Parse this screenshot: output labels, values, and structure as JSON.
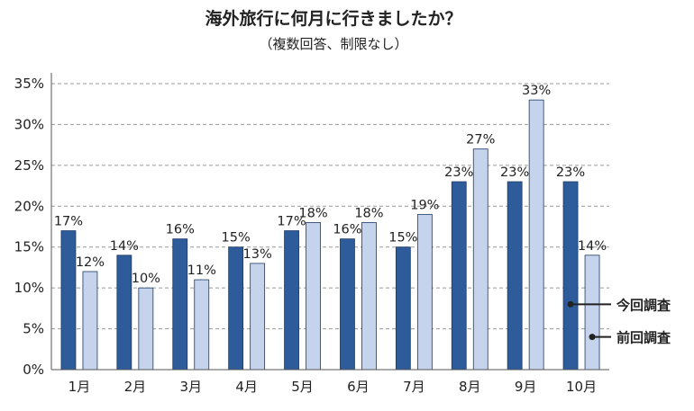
{
  "chart_data": {
    "type": "bar",
    "title": "海外旅行に何月に行きましたか？",
    "subtitle": "（複数回答、制限なし）",
    "categories": [
      "1月",
      "2月",
      "3月",
      "4月",
      "5月",
      "6月",
      "7月",
      "8月",
      "9月",
      "10月"
    ],
    "series": [
      {
        "name": "今回調査",
        "values": [
          17,
          14,
          16,
          15,
          17,
          16,
          15,
          23,
          23,
          23
        ],
        "labels": [
          "17%",
          "14%",
          "16%",
          "15%",
          "17%",
          "16%",
          "15%",
          "23%",
          "23%",
          "23%"
        ],
        "color": "#2e5b9a"
      },
      {
        "name": "前回調査",
        "values": [
          12,
          10,
          11,
          13,
          18,
          18,
          19,
          27,
          33,
          14
        ],
        "labels": [
          "12%",
          "10%",
          "11%",
          "13%",
          "18%",
          "18%",
          "19%",
          "27%",
          "33%",
          "14%"
        ],
        "color": "#c5d3ec"
      }
    ],
    "ylim": [
      0,
      35
    ],
    "yticks": [
      0,
      5,
      10,
      15,
      20,
      25,
      30,
      35
    ],
    "ytick_labels": [
      "0%",
      "5%",
      "10%",
      "15%",
      "20%",
      "25%",
      "30%",
      "35%"
    ],
    "grid": true,
    "legend_position": "inside-right"
  }
}
